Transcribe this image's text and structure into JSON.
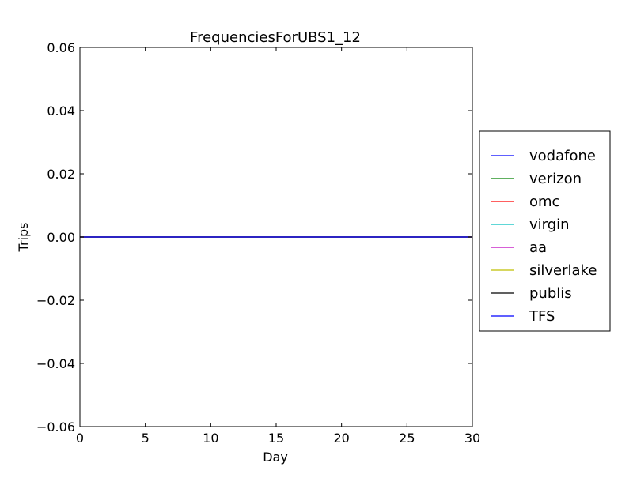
{
  "chart_data": {
    "type": "line",
    "title": "FrequenciesForUBS1_12",
    "xlabel": "Day",
    "ylabel": "Trips",
    "xlim": [
      0,
      30
    ],
    "ylim": [
      -0.06,
      0.06
    ],
    "xticks": [
      0,
      5,
      10,
      15,
      20,
      25,
      30
    ],
    "xtick_labels": [
      "0",
      "5",
      "10",
      "15",
      "20",
      "25",
      "30"
    ],
    "yticks": [
      0.06,
      0.04,
      0.02,
      0.0,
      -0.02,
      -0.04,
      -0.06
    ],
    "ytick_labels": [
      "0.06",
      "0.04",
      "0.02",
      "0.00",
      "−0.02",
      "−0.04",
      "−0.06"
    ],
    "grid": false,
    "legend_position": "outside-right",
    "x": [
      0,
      30
    ],
    "series": [
      {
        "name": "vodafone",
        "color": "#0000ff",
        "values": [
          0,
          0
        ]
      },
      {
        "name": "verizon",
        "color": "#008000",
        "values": [
          0,
          0
        ]
      },
      {
        "name": "omc",
        "color": "#ff0000",
        "values": [
          0,
          0
        ]
      },
      {
        "name": "virgin",
        "color": "#00bfbf",
        "values": [
          0,
          0
        ]
      },
      {
        "name": "aa",
        "color": "#bf00bf",
        "values": [
          0,
          0
        ]
      },
      {
        "name": "silverlake",
        "color": "#bfbf00",
        "values": [
          0,
          0
        ]
      },
      {
        "name": "publis",
        "color": "#000000",
        "values": [
          0,
          0
        ]
      },
      {
        "name": "TFS",
        "color": "#0000ff",
        "values": [
          0,
          0
        ]
      }
    ]
  }
}
